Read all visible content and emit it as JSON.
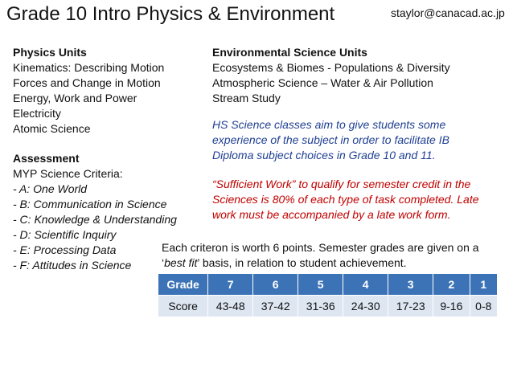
{
  "header": {
    "title": "Grade 10 Intro Physics & Environment",
    "email": "staylor@canacad.ac.jp"
  },
  "physics": {
    "heading": "Physics Units",
    "items": [
      "Kinematics: Describing Motion",
      "Forces and Change in Motion",
      "Energy, Work and Power",
      "Electricity",
      "Atomic Science"
    ]
  },
  "environmental": {
    "heading": "Environmental Science Units",
    "items": [
      "Ecosystems & Biomes  -  Populations & Diversity",
      "Atmospheric Science – Water & Air Pollution",
      "Stream Study"
    ]
  },
  "assessment": {
    "heading": "Assessment",
    "subheading": "MYP Science Criteria:",
    "criteria": [
      "- A: One World",
      "- B: Communication in Science",
      "- C: Knowledge & Understanding",
      "- D: Scientific Inquiry",
      "- E: Processing Data",
      "- F: Attitudes in Science"
    ]
  },
  "notes": {
    "hs_science": [
      "HS Science classes aim to give students some",
      "experience of the subject in order to facilitate IB",
      "Diploma subject choices in Grade 10 and 11."
    ],
    "sufficient_work": [
      "“Sufficient Work” to qualify for semester credit in the",
      "Sciences is 80% of each type of task completed. Late",
      "work must be accompanied by a late work form."
    ]
  },
  "grading": {
    "line1": "Each criteron is worth 6 points. Semester grades are given on a",
    "line2_pre": "‘",
    "line2_emph": "best fit",
    "line2_post": "’ basis, in relation to student achievement.",
    "table": {
      "header": [
        "Grade",
        "7",
        "6",
        "5",
        "4",
        "3",
        "2",
        "1"
      ],
      "row": [
        "Score",
        "43-48",
        "37-42",
        "31-36",
        "24-30",
        "17-23",
        "9-16",
        "0-8"
      ]
    }
  },
  "colors": {
    "table_header": "#3c73b6",
    "table_row": "#dde6f1",
    "blue_text": "#1f3f93",
    "red_text": "#c00000"
  }
}
